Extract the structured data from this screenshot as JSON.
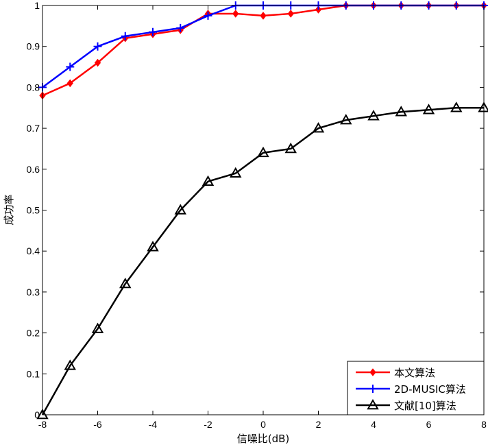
{
  "chart_data": {
    "type": "line",
    "title": "",
    "xlabel": "信噪比(dB)",
    "ylabel": "成功率",
    "xlim": [
      -8,
      8
    ],
    "ylim": [
      0,
      1
    ],
    "xticks": [
      -8,
      -6,
      -4,
      -2,
      0,
      2,
      4,
      6,
      8
    ],
    "xtick_labels": [
      "-8",
      "-6",
      "-4",
      "-2",
      "0",
      "2",
      "4",
      "6",
      "8"
    ],
    "yticks": [
      0,
      0.1,
      0.2,
      0.3,
      0.4,
      0.5,
      0.6,
      0.7,
      0.8,
      0.9,
      1
    ],
    "ytick_labels": [
      "0",
      "0.1",
      "0.2",
      "0.3",
      "0.4",
      "0.5",
      "0.6",
      "0.7",
      "0.8",
      "0.9",
      "1"
    ],
    "grid": false,
    "legend_position": "bottom-right",
    "x": [
      -8,
      -7,
      -6,
      -5,
      -4,
      -3,
      -2,
      -1,
      0,
      1,
      2,
      3,
      4,
      5,
      6,
      7,
      8
    ],
    "series": [
      {
        "name": "本文算法",
        "color": "#ff0000",
        "marker": "diamond",
        "values": [
          0.78,
          0.81,
          0.86,
          0.92,
          0.93,
          0.94,
          0.98,
          0.98,
          0.975,
          0.98,
          0.99,
          1,
          1,
          1,
          1,
          1,
          1
        ]
      },
      {
        "name": "2D-MUSIC算法",
        "color": "#0000ff",
        "marker": "plus",
        "values": [
          0.8,
          0.85,
          0.9,
          0.925,
          0.935,
          0.945,
          0.975,
          1,
          1,
          1,
          1,
          1,
          1,
          1,
          1,
          1,
          1
        ]
      },
      {
        "name": "文献[10]算法",
        "color": "#000000",
        "marker": "triangle",
        "values": [
          0.0,
          0.12,
          0.21,
          0.32,
          0.41,
          0.5,
          0.57,
          0.59,
          0.64,
          0.65,
          0.7,
          0.72,
          0.73,
          0.74,
          0.745,
          0.75,
          0.75
        ]
      }
    ]
  }
}
